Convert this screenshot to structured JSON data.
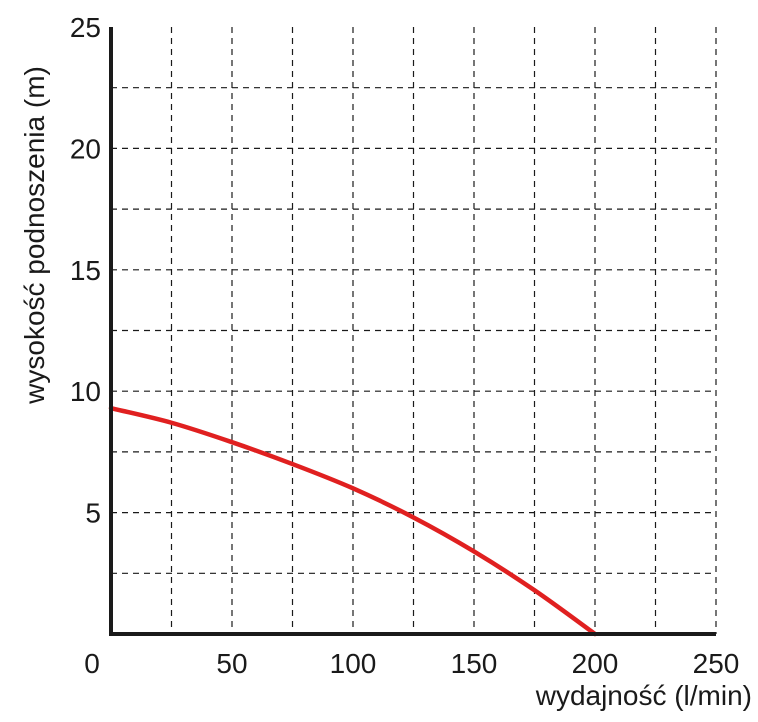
{
  "chart_data": {
    "type": "line",
    "title": "",
    "xlabel": "wydajność (l/min)",
    "ylabel": "wysokość podnoszenia (m)",
    "xlim": [
      0,
      250
    ],
    "ylim": [
      0,
      25
    ],
    "x_ticks": [
      0,
      50,
      100,
      150,
      200,
      250
    ],
    "y_ticks": [
      5,
      10,
      15,
      20,
      25
    ],
    "x_grid": [
      25,
      50,
      75,
      100,
      125,
      150,
      175,
      200,
      225,
      250
    ],
    "y_grid": [
      2.5,
      5,
      7.5,
      10,
      12.5,
      15,
      17.5,
      20,
      22.5
    ],
    "grid": true,
    "series": [
      {
        "color": "#e02020",
        "x": [
          0,
          25,
          50,
          75,
          100,
          125,
          150,
          175,
          200
        ],
        "y": [
          9.3,
          8.7,
          7.9,
          7.0,
          6.0,
          4.8,
          3.4,
          1.8,
          0
        ]
      }
    ]
  }
}
